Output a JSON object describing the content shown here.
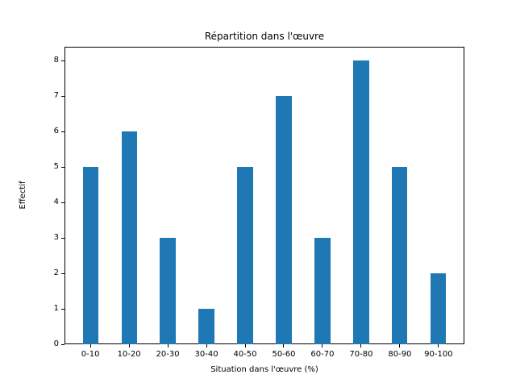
{
  "figure": {
    "title": "Répartition dans l'œuvre",
    "xlabel": "Situation dans l'œuvre (%)",
    "ylabel": "Effectif"
  },
  "chart_data": {
    "type": "bar",
    "title": "Répartition dans l'œuvre",
    "xlabel": "Situation dans l'œuvre (%)",
    "ylabel": "Effectif",
    "categories": [
      "0-10",
      "10-20",
      "20-30",
      "30-40",
      "40-50",
      "50-60",
      "60-70",
      "70-80",
      "80-90",
      "90-100"
    ],
    "values": [
      5,
      6,
      3,
      1,
      5,
      7,
      3,
      8,
      5,
      2
    ],
    "yticks": [
      0,
      1,
      2,
      3,
      4,
      5,
      6,
      7,
      8
    ],
    "ylim": [
      0,
      8.4
    ],
    "bar_color": "#1f77b4",
    "axes_color": "#000000",
    "background_color": "#ffffff",
    "grid": false,
    "legend_position": "none"
  }
}
